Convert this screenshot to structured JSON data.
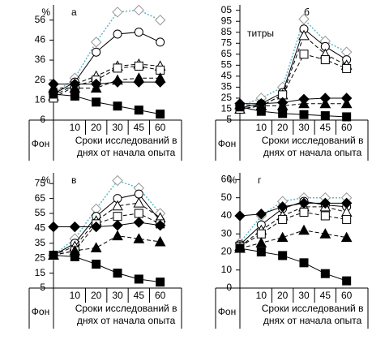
{
  "chart_data": [
    {
      "type": "line",
      "panel_label": "а",
      "unit_label": "%",
      "categories": [
        "Фон",
        "10",
        "20",
        "30",
        "45",
        "60"
      ],
      "x_label_lines": [
        "Сроки исследований в",
        "днях от начала опыта"
      ],
      "ylim": [
        6,
        62
      ],
      "yticks": [
        6,
        16,
        26,
        36,
        46,
        56
      ],
      "series": [
        {
          "marker": "diamond-open",
          "color": "#5fb8c8",
          "dash": "dotted",
          "values": [
            19,
            27,
            45,
            60,
            61,
            56
          ]
        },
        {
          "marker": "circle-open",
          "color": "#000000",
          "dash": "solid",
          "values": [
            19,
            25,
            40,
            49,
            50,
            45
          ]
        },
        {
          "marker": "triangle-open",
          "color": "#000000",
          "dash": "dashed",
          "values": [
            18,
            24,
            28,
            33,
            34,
            33
          ]
        },
        {
          "marker": "square-open",
          "color": "#000000",
          "dash": "dashed",
          "values": [
            17,
            23,
            26,
            32,
            33,
            31
          ]
        },
        {
          "marker": "diamond",
          "color": "#000000",
          "dash": "solid",
          "values": [
            24,
            24,
            24,
            25,
            25,
            25
          ]
        },
        {
          "marker": "triangle",
          "color": "#000000",
          "dash": "dashed",
          "values": [
            22,
            22,
            22,
            26,
            27,
            27
          ]
        },
        {
          "marker": "square",
          "color": "#000000",
          "dash": "solid",
          "values": [
            19,
            18,
            15,
            13,
            11,
            9
          ]
        }
      ]
    },
    {
      "type": "line",
      "panel_label": "б",
      "unit_label": "титры",
      "categories": [
        "Фон",
        "10",
        "20",
        "30",
        "45",
        "60"
      ],
      "x_label_lines": [
        "Сроки исследований в",
        "днях от начала опыта"
      ],
      "ylim": [
        5,
        107
      ],
      "yticks": [
        5,
        15,
        25,
        35,
        45,
        55,
        65,
        75,
        85,
        95,
        {
          "value": 105,
          "label": "05"
        }
      ],
      "series": [
        {
          "marker": "diamond-open",
          "color": "#5fb8c8",
          "dash": "dotted",
          "values": [
            18,
            25,
            35,
            97,
            77,
            67
          ]
        },
        {
          "marker": "circle-open",
          "color": "#000000",
          "dash": "solid",
          "values": [
            16,
            20,
            30,
            88,
            72,
            60
          ]
        },
        {
          "marker": "triangle-open",
          "color": "#000000",
          "dash": "dashed",
          "values": [
            15,
            18,
            28,
            82,
            65,
            55
          ]
        },
        {
          "marker": "square-open",
          "color": "#000000",
          "dash": "dashed",
          "values": [
            15,
            18,
            28,
            65,
            60,
            52
          ]
        },
        {
          "marker": "diamond",
          "color": "#000000",
          "dash": "solid",
          "values": [
            20,
            20,
            21,
            24,
            25,
            25
          ]
        },
        {
          "marker": "triangle",
          "color": "#000000",
          "dash": "dashed",
          "values": [
            19,
            18,
            18,
            20,
            20,
            20
          ]
        },
        {
          "marker": "square",
          "color": "#000000",
          "dash": "solid",
          "values": [
            17,
            13,
            11,
            10,
            9,
            8
          ]
        }
      ]
    },
    {
      "type": "line",
      "panel_label": "в",
      "unit_label": "%",
      "categories": [
        "Фон",
        "10",
        "20",
        "30",
        "45",
        "60"
      ],
      "x_label_lines": [
        "Сроки исследований в",
        "днях от начала опыта"
      ],
      "ylim": [
        5,
        80
      ],
      "yticks": [
        5,
        15,
        25,
        35,
        45,
        55,
        65,
        75
      ],
      "series": [
        {
          "marker": "diamond-open",
          "color": "#5fb8c8",
          "dash": "dotted",
          "values": [
            27,
            38,
            58,
            77,
            72,
            55
          ]
        },
        {
          "marker": "circle-open",
          "color": "#000000",
          "dash": "solid",
          "values": [
            27,
            35,
            53,
            65,
            68,
            50
          ]
        },
        {
          "marker": "triangle-open",
          "color": "#000000",
          "dash": "dashed",
          "values": [
            27,
            33,
            50,
            60,
            62,
            52
          ]
        },
        {
          "marker": "square-open",
          "color": "#000000",
          "dash": "dashed",
          "values": [
            27,
            30,
            48,
            53,
            55,
            48
          ]
        },
        {
          "marker": "diamond",
          "color": "#000000",
          "dash": "solid",
          "values": [
            46,
            46,
            46,
            47,
            49,
            47
          ]
        },
        {
          "marker": "triangle",
          "color": "#000000",
          "dash": "dashed",
          "values": [
            27,
            30,
            32,
            40,
            38,
            36
          ]
        },
        {
          "marker": "square",
          "color": "#000000",
          "dash": "solid",
          "values": [
            27,
            26,
            21,
            15,
            11,
            9
          ]
        }
      ]
    },
    {
      "type": "line",
      "panel_label": "г",
      "unit_label": "%",
      "categories": [
        "Фон",
        "10",
        "20",
        "30",
        "45",
        "60"
      ],
      "x_label_lines": [
        "Сроки исследований в",
        "днях от начала опыта"
      ],
      "ylim": [
        0,
        62
      ],
      "yticks": [
        0,
        10,
        20,
        30,
        40,
        50,
        60
      ],
      "series": [
        {
          "marker": "diamond-open",
          "color": "#5fb8c8",
          "dash": "dotted",
          "values": [
            25,
            40,
            48,
            50,
            50,
            50
          ]
        },
        {
          "marker": "circle-open",
          "color": "#000000",
          "dash": "solid",
          "values": [
            24,
            35,
            44,
            48,
            46,
            45
          ]
        },
        {
          "marker": "triangle-open",
          "color": "#000000",
          "dash": "dashed",
          "values": [
            23,
            32,
            40,
            45,
            45,
            42
          ]
        },
        {
          "marker": "square-open",
          "color": "#000000",
          "dash": "dashed",
          "values": [
            23,
            30,
            38,
            42,
            40,
            38
          ]
        },
        {
          "marker": "diamond",
          "color": "#000000",
          "dash": "solid",
          "values": [
            40,
            41,
            45,
            47,
            47,
            47
          ]
        },
        {
          "marker": "triangle",
          "color": "#000000",
          "dash": "dashed",
          "values": [
            22,
            25,
            28,
            32,
            30,
            28
          ]
        },
        {
          "marker": "square",
          "color": "#000000",
          "dash": "solid",
          "values": [
            22,
            20,
            18,
            14,
            8,
            4
          ]
        }
      ]
    }
  ]
}
